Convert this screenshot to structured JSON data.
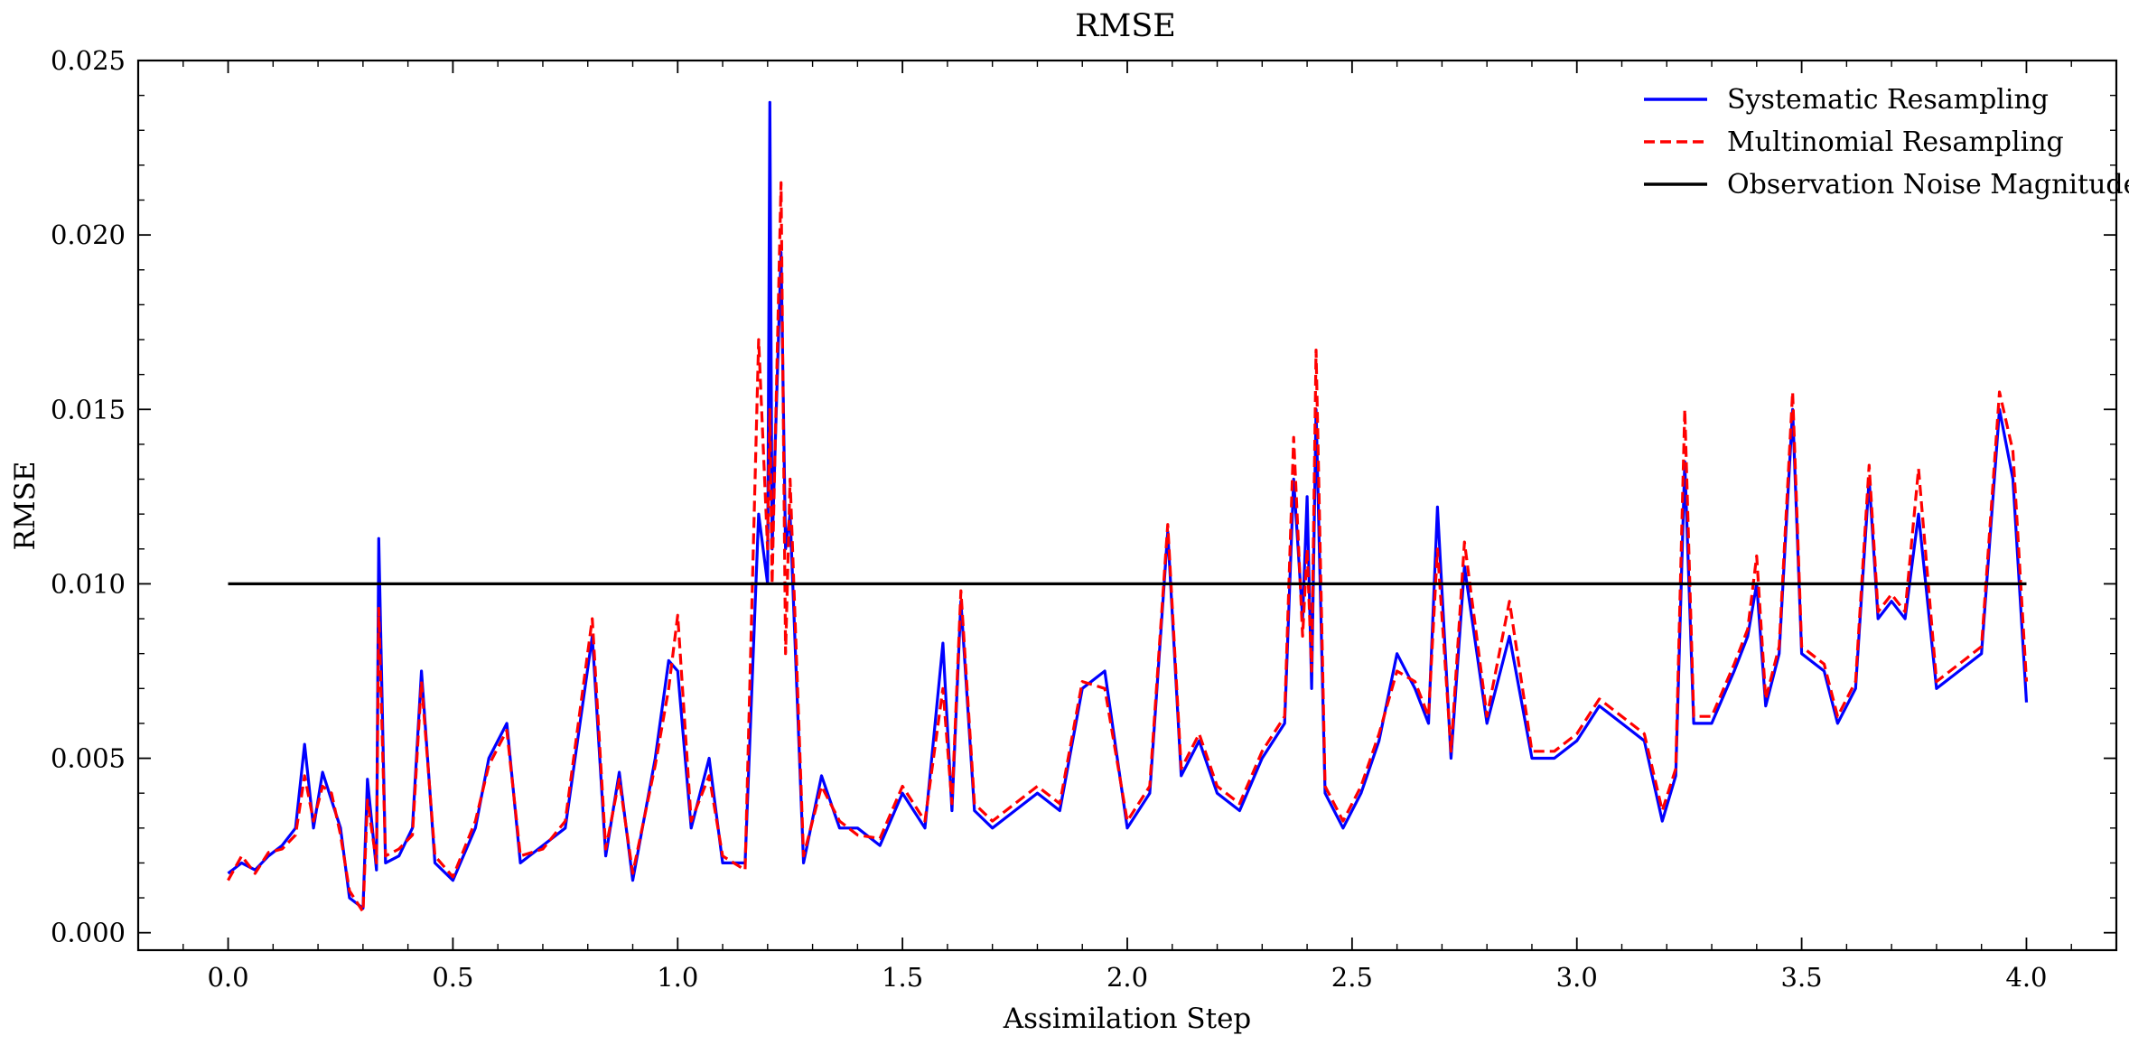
{
  "chart_data": {
    "type": "line",
    "title": "RMSE",
    "xlabel": "Assimilation Step",
    "ylabel": "RMSE",
    "xlim": [
      -0.2,
      4.2
    ],
    "ylim": [
      -0.0005,
      0.025
    ],
    "xticks": [
      0.0,
      0.5,
      1.0,
      1.5,
      2.0,
      2.5,
      3.0,
      3.5,
      4.0
    ],
    "xtick_labels": [
      "0.0",
      "0.5",
      "1.0",
      "1.5",
      "2.0",
      "2.5",
      "3.0",
      "3.5",
      "4.0"
    ],
    "yticks": [
      0.0,
      0.005,
      0.01,
      0.015,
      0.02,
      0.025
    ],
    "ytick_labels": [
      "0.000",
      "0.005",
      "0.010",
      "0.015",
      "0.020",
      "0.025"
    ],
    "grid": false,
    "legend_position": "top-right",
    "series": [
      {
        "name": "Systematic Resampling",
        "color": "#0000ff",
        "style": "solid",
        "points": [
          [
            0.0,
            0.0017
          ],
          [
            0.03,
            0.002
          ],
          [
            0.06,
            0.0018
          ],
          [
            0.09,
            0.0022
          ],
          [
            0.12,
            0.0025
          ],
          [
            0.15,
            0.003
          ],
          [
            0.17,
            0.0054
          ],
          [
            0.19,
            0.003
          ],
          [
            0.21,
            0.0046
          ],
          [
            0.23,
            0.0038
          ],
          [
            0.25,
            0.003
          ],
          [
            0.27,
            0.001
          ],
          [
            0.3,
            0.0007
          ],
          [
            0.31,
            0.0044
          ],
          [
            0.33,
            0.0018
          ],
          [
            0.335,
            0.0113
          ],
          [
            0.35,
            0.002
          ],
          [
            0.38,
            0.0022
          ],
          [
            0.41,
            0.003
          ],
          [
            0.43,
            0.0075
          ],
          [
            0.46,
            0.002
          ],
          [
            0.5,
            0.0015
          ],
          [
            0.55,
            0.003
          ],
          [
            0.58,
            0.005
          ],
          [
            0.62,
            0.006
          ],
          [
            0.65,
            0.002
          ],
          [
            0.7,
            0.0025
          ],
          [
            0.75,
            0.003
          ],
          [
            0.81,
            0.0085
          ],
          [
            0.84,
            0.0022
          ],
          [
            0.87,
            0.0046
          ],
          [
            0.9,
            0.0015
          ],
          [
            0.95,
            0.005
          ],
          [
            0.98,
            0.0078
          ],
          [
            1.0,
            0.0075
          ],
          [
            1.03,
            0.003
          ],
          [
            1.07,
            0.005
          ],
          [
            1.1,
            0.002
          ],
          [
            1.15,
            0.002
          ],
          [
            1.18,
            0.012
          ],
          [
            1.2,
            0.01
          ],
          [
            1.205,
            0.0238
          ],
          [
            1.21,
            0.011
          ],
          [
            1.23,
            0.0195
          ],
          [
            1.24,
            0.011
          ],
          [
            1.25,
            0.012
          ],
          [
            1.28,
            0.002
          ],
          [
            1.32,
            0.0045
          ],
          [
            1.36,
            0.003
          ],
          [
            1.4,
            0.003
          ],
          [
            1.45,
            0.0025
          ],
          [
            1.5,
            0.004
          ],
          [
            1.55,
            0.003
          ],
          [
            1.59,
            0.0083
          ],
          [
            1.61,
            0.0035
          ],
          [
            1.63,
            0.0095
          ],
          [
            1.66,
            0.0035
          ],
          [
            1.7,
            0.003
          ],
          [
            1.75,
            0.0035
          ],
          [
            1.8,
            0.004
          ],
          [
            1.85,
            0.0035
          ],
          [
            1.9,
            0.007
          ],
          [
            1.95,
            0.0075
          ],
          [
            2.0,
            0.003
          ],
          [
            2.05,
            0.004
          ],
          [
            2.09,
            0.0115
          ],
          [
            2.12,
            0.0045
          ],
          [
            2.16,
            0.0055
          ],
          [
            2.2,
            0.004
          ],
          [
            2.25,
            0.0035
          ],
          [
            2.3,
            0.005
          ],
          [
            2.35,
            0.006
          ],
          [
            2.37,
            0.013
          ],
          [
            2.39,
            0.009
          ],
          [
            2.4,
            0.0125
          ],
          [
            2.41,
            0.007
          ],
          [
            2.42,
            0.015
          ],
          [
            2.44,
            0.004
          ],
          [
            2.48,
            0.003
          ],
          [
            2.52,
            0.004
          ],
          [
            2.56,
            0.0055
          ],
          [
            2.6,
            0.008
          ],
          [
            2.64,
            0.007
          ],
          [
            2.67,
            0.006
          ],
          [
            2.69,
            0.0122
          ],
          [
            2.72,
            0.005
          ],
          [
            2.75,
            0.0105
          ],
          [
            2.8,
            0.006
          ],
          [
            2.85,
            0.0085
          ],
          [
            2.9,
            0.005
          ],
          [
            2.95,
            0.005
          ],
          [
            3.0,
            0.0055
          ],
          [
            3.05,
            0.0065
          ],
          [
            3.1,
            0.006
          ],
          [
            3.15,
            0.0055
          ],
          [
            3.19,
            0.0032
          ],
          [
            3.22,
            0.0045
          ],
          [
            3.24,
            0.0135
          ],
          [
            3.26,
            0.006
          ],
          [
            3.3,
            0.006
          ],
          [
            3.35,
            0.0075
          ],
          [
            3.38,
            0.0085
          ],
          [
            3.4,
            0.01
          ],
          [
            3.42,
            0.0065
          ],
          [
            3.45,
            0.008
          ],
          [
            3.48,
            0.015
          ],
          [
            3.5,
            0.008
          ],
          [
            3.55,
            0.0075
          ],
          [
            3.58,
            0.006
          ],
          [
            3.62,
            0.007
          ],
          [
            3.65,
            0.013
          ],
          [
            3.67,
            0.009
          ],
          [
            3.7,
            0.0095
          ],
          [
            3.73,
            0.009
          ],
          [
            3.76,
            0.012
          ],
          [
            3.8,
            0.007
          ],
          [
            3.85,
            0.0075
          ],
          [
            3.9,
            0.008
          ],
          [
            3.94,
            0.015
          ],
          [
            3.97,
            0.013
          ],
          [
            4.0,
            0.0066
          ]
        ]
      },
      {
        "name": "Multinomial Resampling",
        "color": "#ff0000",
        "style": "dashed",
        "points": [
          [
            0.0,
            0.0015
          ],
          [
            0.03,
            0.0022
          ],
          [
            0.06,
            0.0017
          ],
          [
            0.09,
            0.0023
          ],
          [
            0.12,
            0.0024
          ],
          [
            0.15,
            0.0028
          ],
          [
            0.17,
            0.0045
          ],
          [
            0.19,
            0.0032
          ],
          [
            0.21,
            0.0042
          ],
          [
            0.23,
            0.004
          ],
          [
            0.25,
            0.0028
          ],
          [
            0.27,
            0.0012
          ],
          [
            0.3,
            0.0006
          ],
          [
            0.31,
            0.0038
          ],
          [
            0.33,
            0.002
          ],
          [
            0.335,
            0.0093
          ],
          [
            0.35,
            0.0022
          ],
          [
            0.38,
            0.0024
          ],
          [
            0.41,
            0.0028
          ],
          [
            0.43,
            0.0072
          ],
          [
            0.46,
            0.0022
          ],
          [
            0.5,
            0.0016
          ],
          [
            0.55,
            0.0032
          ],
          [
            0.58,
            0.0048
          ],
          [
            0.62,
            0.0058
          ],
          [
            0.65,
            0.0022
          ],
          [
            0.7,
            0.0024
          ],
          [
            0.75,
            0.0032
          ],
          [
            0.81,
            0.009
          ],
          [
            0.84,
            0.0024
          ],
          [
            0.87,
            0.0044
          ],
          [
            0.9,
            0.0017
          ],
          [
            0.95,
            0.0048
          ],
          [
            0.98,
            0.007
          ],
          [
            1.0,
            0.0091
          ],
          [
            1.03,
            0.0032
          ],
          [
            1.07,
            0.0045
          ],
          [
            1.1,
            0.0022
          ],
          [
            1.15,
            0.0018
          ],
          [
            1.18,
            0.017
          ],
          [
            1.2,
            0.011
          ],
          [
            1.205,
            0.015
          ],
          [
            1.21,
            0.01
          ],
          [
            1.23,
            0.0215
          ],
          [
            1.24,
            0.008
          ],
          [
            1.25,
            0.013
          ],
          [
            1.28,
            0.0022
          ],
          [
            1.32,
            0.0042
          ],
          [
            1.36,
            0.0032
          ],
          [
            1.4,
            0.0028
          ],
          [
            1.45,
            0.0027
          ],
          [
            1.5,
            0.0042
          ],
          [
            1.55,
            0.0032
          ],
          [
            1.59,
            0.007
          ],
          [
            1.61,
            0.0037
          ],
          [
            1.63,
            0.0098
          ],
          [
            1.66,
            0.0037
          ],
          [
            1.7,
            0.0032
          ],
          [
            1.75,
            0.0037
          ],
          [
            1.8,
            0.0042
          ],
          [
            1.85,
            0.0037
          ],
          [
            1.9,
            0.0072
          ],
          [
            1.95,
            0.007
          ],
          [
            2.0,
            0.0032
          ],
          [
            2.05,
            0.0042
          ],
          [
            2.09,
            0.0117
          ],
          [
            2.12,
            0.0047
          ],
          [
            2.16,
            0.0057
          ],
          [
            2.2,
            0.0042
          ],
          [
            2.25,
            0.0037
          ],
          [
            2.3,
            0.0052
          ],
          [
            2.35,
            0.0062
          ],
          [
            2.37,
            0.0142
          ],
          [
            2.39,
            0.0085
          ],
          [
            2.4,
            0.011
          ],
          [
            2.41,
            0.0075
          ],
          [
            2.42,
            0.0167
          ],
          [
            2.44,
            0.0042
          ],
          [
            2.48,
            0.0032
          ],
          [
            2.52,
            0.0042
          ],
          [
            2.56,
            0.0057
          ],
          [
            2.6,
            0.0075
          ],
          [
            2.64,
            0.0072
          ],
          [
            2.67,
            0.0062
          ],
          [
            2.69,
            0.011
          ],
          [
            2.72,
            0.0052
          ],
          [
            2.75,
            0.0112
          ],
          [
            2.8,
            0.0062
          ],
          [
            2.85,
            0.0095
          ],
          [
            2.9,
            0.0052
          ],
          [
            2.95,
            0.0052
          ],
          [
            3.0,
            0.0057
          ],
          [
            3.05,
            0.0067
          ],
          [
            3.1,
            0.0062
          ],
          [
            3.15,
            0.0057
          ],
          [
            3.19,
            0.0035
          ],
          [
            3.22,
            0.0047
          ],
          [
            3.24,
            0.015
          ],
          [
            3.26,
            0.0062
          ],
          [
            3.3,
            0.0062
          ],
          [
            3.35,
            0.0077
          ],
          [
            3.38,
            0.0087
          ],
          [
            3.4,
            0.0108
          ],
          [
            3.42,
            0.0067
          ],
          [
            3.45,
            0.0082
          ],
          [
            3.48,
            0.0155
          ],
          [
            3.5,
            0.0082
          ],
          [
            3.55,
            0.0077
          ],
          [
            3.58,
            0.0062
          ],
          [
            3.62,
            0.0072
          ],
          [
            3.65,
            0.0134
          ],
          [
            3.67,
            0.0092
          ],
          [
            3.7,
            0.0097
          ],
          [
            3.73,
            0.0092
          ],
          [
            3.76,
            0.0133
          ],
          [
            3.8,
            0.0072
          ],
          [
            3.85,
            0.0077
          ],
          [
            3.9,
            0.0082
          ],
          [
            3.94,
            0.0155
          ],
          [
            3.97,
            0.0138
          ],
          [
            4.0,
            0.0072
          ]
        ]
      },
      {
        "name": "Observation Noise Magnitude",
        "color": "#000000",
        "style": "solid",
        "points": [
          [
            0.0,
            0.01
          ],
          [
            4.0,
            0.01
          ]
        ]
      }
    ]
  }
}
